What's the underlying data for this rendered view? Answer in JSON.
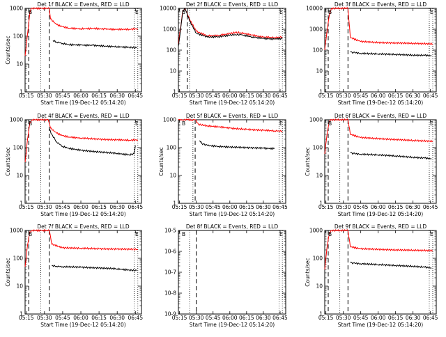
{
  "chart_data": [
    {
      "type": "line",
      "title": "Det 1f BLACK = Events, RED = LLD",
      "xlabel": "Start Time (19-Dec-12 05:14:20)",
      "ylabel": "Counts/sec",
      "yscale": "log",
      "ylim": [
        1,
        1000
      ],
      "ytick_labels": [
        "1",
        "10",
        "100",
        "1000"
      ],
      "xlim": [
        "05:14",
        "06:50"
      ],
      "xtick_labels": [
        "05:15",
        "05:30",
        "05:45",
        "06:00",
        "06:15",
        "06:30",
        "06:45"
      ],
      "corner_labels": [
        "B",
        "E"
      ],
      "series": [
        {
          "color": "#ff0000",
          "x": [
            "05:14",
            "05:16",
            "05:18",
            "05:19",
            "05:20",
            "05:22",
            "05:27",
            "05:34",
            "05:35",
            "05:40",
            "05:45",
            "05:50",
            "06:00",
            "06:10",
            "06:20",
            "06:30",
            "06:40",
            "06:47"
          ],
          "y": [
            20,
            120,
            700,
            1000,
            1000,
            1000,
            1000,
            1000,
            420,
            260,
            220,
            195,
            185,
            190,
            180,
            175,
            178,
            185
          ]
        },
        {
          "color": "#000000",
          "x": [
            "05:37",
            "05:40",
            "05:45",
            "05:50",
            "06:00",
            "06:10",
            "06:20",
            "06:30",
            "06:40",
            "06:46"
          ],
          "y": [
            70,
            62,
            55,
            50,
            48,
            47,
            44,
            42,
            40,
            38
          ]
        }
      ],
      "vlines_dashed": [
        "05:17",
        "05:34"
      ],
      "vlines_dotted": [
        "05:27",
        "06:44",
        "06:47"
      ]
    },
    {
      "type": "line",
      "title": "Det 2f BLACK = Events, RED = LLD",
      "xlabel": "Start Time (19-Dec-12 05:14:20)",
      "ylabel": "",
      "yscale": "log",
      "ylim": [
        1,
        10000
      ],
      "ytick_labels": [
        "1",
        "10",
        "100",
        "1000",
        "10000"
      ],
      "xlim": [
        "05:14",
        "06:50"
      ],
      "xtick_labels": [
        "05:15",
        "05:30",
        "05:45",
        "06:00",
        "06:15",
        "06:30",
        "06:45"
      ],
      "corner_labels": [
        "B",
        "E"
      ],
      "series": [
        {
          "color": "#ff0000",
          "x": [
            "05:14",
            "05:16",
            "05:18",
            "05:20",
            "05:24",
            "05:30",
            "05:40",
            "05:50",
            "06:00",
            "06:05",
            "06:10",
            "06:20",
            "06:30",
            "06:40",
            "06:47"
          ],
          "y": [
            200,
            1200,
            8000,
            10000,
            3000,
            800,
            480,
            500,
            620,
            700,
            680,
            520,
            420,
            400,
            430
          ]
        },
        {
          "color": "#000000",
          "x": [
            "05:14",
            "05:16",
            "05:18",
            "05:20",
            "05:24",
            "05:30",
            "05:40",
            "05:50",
            "06:00",
            "06:05",
            "06:10",
            "06:20",
            "06:30",
            "06:40",
            "06:47"
          ],
          "y": [
            150,
            1000,
            7000,
            10000,
            2500,
            650,
            420,
            440,
            520,
            560,
            540,
            430,
            360,
            340,
            360
          ]
        }
      ],
      "vlines_dashed": [
        "05:22"
      ],
      "vlines_dotted": [
        "05:24",
        "06:44",
        "06:47"
      ]
    },
    {
      "type": "line",
      "title": "Det 3f BLACK = Events, RED = LLD",
      "xlabel": "Start Time (19-Dec-12 05:14:20)",
      "ylabel": "",
      "yscale": "log",
      "ylim": [
        1,
        10000
      ],
      "ytick_labels": [
        "1",
        "10",
        "100",
        "1000",
        "10000"
      ],
      "xlim": [
        "05:14",
        "06:50"
      ],
      "xtick_labels": [
        "05:15",
        "05:30",
        "05:45",
        "06:00",
        "06:15",
        "06:30",
        "06:45"
      ],
      "corner_labels": [
        "B",
        "E"
      ],
      "series": [
        {
          "color": "#ff0000",
          "x": [
            "05:14",
            "05:16",
            "05:18",
            "05:20",
            "05:22",
            "05:27",
            "05:34",
            "05:36",
            "05:45",
            "06:00",
            "06:15",
            "06:30",
            "06:47"
          ],
          "y": [
            100,
            800,
            5000,
            10000,
            10000,
            10000,
            10000,
            400,
            260,
            230,
            220,
            210,
            200
          ]
        },
        {
          "color": "#000000",
          "x": [
            "05:36",
            "05:40",
            "05:45",
            "06:00",
            "06:15",
            "06:30",
            "06:40",
            "06:46"
          ],
          "y": [
            80,
            75,
            70,
            66,
            62,
            58,
            56,
            55
          ]
        }
      ],
      "vlines_dashed": [
        "05:17",
        "05:34"
      ],
      "vlines_dotted": [
        "05:27",
        "06:44",
        "06:47"
      ]
    },
    {
      "type": "line",
      "title": "Det 4f BLACK = Events, RED = LLD",
      "xlabel": "Start Time (19-Dec-12 05:14:20)",
      "ylabel": "Counts/sec",
      "yscale": "log",
      "ylim": [
        1,
        1000
      ],
      "ytick_labels": [
        "1",
        "10",
        "100",
        "1000"
      ],
      "xlim": [
        "05:14",
        "06:50"
      ],
      "xtick_labels": [
        "05:15",
        "05:30",
        "05:45",
        "06:00",
        "06:15",
        "06:30",
        "06:45"
      ],
      "corner_labels": [
        "B",
        "E"
      ],
      "series": [
        {
          "color": "#ff0000",
          "x": [
            "05:14",
            "05:16",
            "05:18",
            "05:20",
            "05:22",
            "05:27",
            "05:33",
            "05:35",
            "05:40",
            "05:45",
            "05:50",
            "06:00",
            "06:15",
            "06:30",
            "06:40",
            "06:47"
          ],
          "y": [
            30,
            200,
            800,
            1000,
            1000,
            1000,
            1000,
            500,
            330,
            270,
            240,
            220,
            200,
            190,
            185,
            190
          ]
        },
        {
          "color": "#000000",
          "x": [
            "05:34",
            "05:36",
            "05:40",
            "05:45",
            "05:50",
            "06:00",
            "06:15",
            "06:30",
            "06:40",
            "06:44",
            "06:45"
          ],
          "y": [
            480,
            300,
            160,
            110,
            95,
            80,
            70,
            62,
            55,
            60,
            120
          ]
        }
      ],
      "vlines_dashed": [
        "05:17",
        "05:34"
      ],
      "vlines_dotted": [
        "05:27",
        "06:44",
        "06:47"
      ]
    },
    {
      "type": "line",
      "title": "Det 5f BLACK = Events, RED = LLD",
      "xlabel": "Start Time (19-Dec-12 05:14:20)",
      "ylabel": "Counts/sec",
      "yscale": "log",
      "ylim": [
        1,
        1000
      ],
      "ytick_labels": [
        "1",
        "10",
        "100",
        "1000"
      ],
      "xlim": [
        "05:14",
        "06:50"
      ],
      "xtick_labels": [
        "05:15",
        "05:30",
        "05:45",
        "06:00",
        "06:15",
        "06:30",
        "06:45"
      ],
      "corner_labels": [
        "B",
        "E"
      ],
      "series": [
        {
          "color": "#ff0000",
          "x": [
            "05:14",
            "05:18",
            "05:22",
            "05:26",
            "05:29",
            "05:32",
            "05:40",
            "05:50",
            "06:00",
            "06:15",
            "06:30",
            "06:40",
            "06:47"
          ],
          "y": [
            1000,
            1000,
            1000,
            1000,
            1000,
            680,
            600,
            560,
            500,
            450,
            420,
            400,
            390
          ]
        },
        {
          "color": "#000000",
          "x": [
            "05:33",
            "05:35",
            "05:40",
            "05:50",
            "06:00",
            "06:15",
            "06:30",
            "06:40"
          ],
          "y": [
            180,
            140,
            120,
            110,
            105,
            100,
            95,
            92
          ]
        }
      ],
      "vlines_dashed": [
        "05:29"
      ],
      "vlines_dotted": [
        "05:27",
        "06:44",
        "06:47"
      ]
    },
    {
      "type": "line",
      "title": "Det 6f BLACK = Events, RED = LLD",
      "xlabel": "Start Time (19-Dec-12 05:14:20)",
      "ylabel": "Counts/sec",
      "yscale": "log",
      "ylim": [
        1,
        1000
      ],
      "ytick_labels": [
        "1",
        "10",
        "100",
        "1000"
      ],
      "xlim": [
        "05:14",
        "06:50"
      ],
      "xtick_labels": [
        "05:15",
        "05:30",
        "05:45",
        "06:00",
        "06:15",
        "06:30",
        "06:45"
      ],
      "corner_labels": [
        "B",
        "E"
      ],
      "series": [
        {
          "color": "#ff0000",
          "x": [
            "05:14",
            "05:16",
            "05:18",
            "05:20",
            "05:22",
            "05:27",
            "05:34",
            "05:36",
            "05:45",
            "06:00",
            "06:15",
            "06:30",
            "06:47"
          ],
          "y": [
            60,
            300,
            900,
            1000,
            1000,
            1000,
            1000,
            300,
            230,
            210,
            195,
            180,
            170
          ]
        },
        {
          "color": "#000000",
          "x": [
            "05:36",
            "05:40",
            "05:45",
            "06:00",
            "06:15",
            "06:30",
            "06:40",
            "06:46"
          ],
          "y": [
            65,
            60,
            58,
            55,
            50,
            45,
            42,
            40
          ]
        }
      ],
      "vlines_dashed": [
        "05:17",
        "05:34"
      ],
      "vlines_dotted": [
        "05:27",
        "06:44",
        "06:47"
      ]
    },
    {
      "type": "line",
      "title": "Det 7f BLACK = Events, RED = LLD",
      "xlabel": "Start Time (19-Dec-12 05:14:20)",
      "ylabel": "Counts/sec",
      "yscale": "log",
      "ylim": [
        1,
        1000
      ],
      "ytick_labels": [
        "1",
        "10",
        "100",
        "1000"
      ],
      "xlim": [
        "05:14",
        "06:50"
      ],
      "xtick_labels": [
        "05:15",
        "05:30",
        "05:45",
        "06:00",
        "06:15",
        "06:30",
        "06:45"
      ],
      "corner_labels": [
        "B",
        "E"
      ],
      "series": [
        {
          "color": "#ff0000",
          "x": [
            "05:14",
            "05:16",
            "05:18",
            "05:20",
            "05:22",
            "05:27",
            "05:34",
            "05:36",
            "05:45",
            "06:00",
            "06:15",
            "06:30",
            "06:47"
          ],
          "y": [
            50,
            300,
            900,
            1000,
            1000,
            1000,
            1000,
            320,
            240,
            230,
            220,
            215,
            210
          ]
        },
        {
          "color": "#000000",
          "x": [
            "05:36",
            "05:40",
            "05:45",
            "06:00",
            "06:15",
            "06:30",
            "06:40",
            "06:46"
          ],
          "y": [
            55,
            52,
            50,
            48,
            45,
            42,
            38,
            36
          ]
        }
      ],
      "vlines_dashed": [
        "05:17",
        "05:34"
      ],
      "vlines_dotted": [
        "05:27",
        "06:44",
        "06:47"
      ]
    },
    {
      "type": "line",
      "title": "Det 8f BLACK = Events, RED = LLD",
      "xlabel": "Start Time (19-Dec-12 05:14:20)",
      "ylabel": "",
      "yscale": "log",
      "ylim": [
        1e-09,
        1e-05
      ],
      "ytick_labels": [
        "10-9",
        "10-8",
        "10-7",
        "10-6",
        "10-5"
      ],
      "xlim": [
        "05:14",
        "06:50"
      ],
      "xtick_labels": [
        "05:15",
        "05:30",
        "05:45",
        "06:00",
        "06:15",
        "06:30",
        "06:45"
      ],
      "corner_labels": [
        "B",
        "E"
      ],
      "series": [],
      "vlines_dashed": [
        "05:30"
      ],
      "vlines_dotted": [
        "05:24",
        "06:44",
        "06:47"
      ]
    },
    {
      "type": "line",
      "title": "Det 9f BLACK = Events, RED = LLD",
      "xlabel": "Start Time (19-Dec-12 05:14:20)",
      "ylabel": "Counts/sec",
      "yscale": "log",
      "ylim": [
        1,
        1000
      ],
      "ytick_labels": [
        "1",
        "10",
        "100",
        "1000"
      ],
      "xlim": [
        "05:14",
        "06:50"
      ],
      "xtick_labels": [
        "05:15",
        "05:30",
        "05:45",
        "06:00",
        "06:15",
        "06:30",
        "06:45"
      ],
      "corner_labels": [
        "B",
        "E"
      ],
      "series": [
        {
          "color": "#ff0000",
          "x": [
            "05:14",
            "05:16",
            "05:18",
            "05:20",
            "05:22",
            "05:27",
            "05:34",
            "05:36",
            "05:45",
            "06:00",
            "06:15",
            "06:30",
            "06:47"
          ],
          "y": [
            40,
            250,
            800,
            1000,
            1000,
            1000,
            1000,
            260,
            220,
            210,
            200,
            195,
            190
          ]
        },
        {
          "color": "#000000",
          "x": [
            "05:36",
            "05:40",
            "05:45",
            "06:00",
            "06:15",
            "06:30",
            "06:40",
            "06:46"
          ],
          "y": [
            70,
            66,
            64,
            60,
            55,
            52,
            48,
            45
          ]
        }
      ],
      "vlines_dashed": [
        "05:17",
        "05:34"
      ],
      "vlines_dotted": [
        "05:27",
        "06:44",
        "06:47"
      ]
    }
  ]
}
